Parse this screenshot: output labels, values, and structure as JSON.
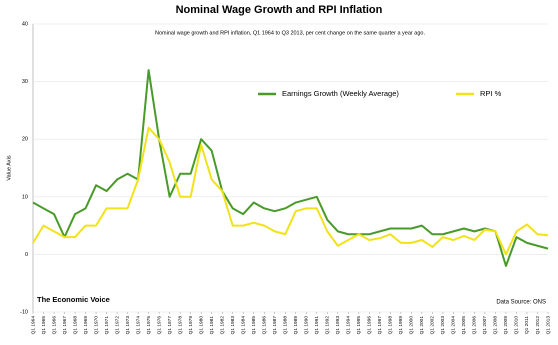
{
  "chart_data": {
    "type": "line",
    "title": "Nominal Wage Growth and RPI Inflation",
    "subtitle": "Nominal wage growth and RPI inflation, Q1 1964 to Q3 2013, per cent change on the same quarter a year ago.",
    "y_label": "Value Axis",
    "annotations": [
      "The Economic Voice",
      "Data Source: ONS"
    ],
    "categories": [
      "Q1 1964",
      "Q1 1965",
      "Q1 1966",
      "Q1 1967",
      "Q1 1968",
      "Q1 1969",
      "Q1 1970",
      "Q1 1971",
      "Q1 1972",
      "Q1 1973",
      "Q1 1974",
      "Q1 1975",
      "Q1 1976",
      "Q1 1977",
      "Q1 1978",
      "Q1 1979",
      "Q1 1980",
      "Q1 1981",
      "Q1 1982",
      "Q1 1983",
      "Q1 1984",
      "Q1 1985",
      "Q1 1986",
      "Q1 1987",
      "Q1 1988",
      "Q1 1989",
      "Q1 1990",
      "Q1 1991",
      "Q1 1992",
      "Q1 1993",
      "Q1 1994",
      "Q1 1995",
      "Q1 1996",
      "Q1 1997",
      "Q1 1998",
      "Q1 1999",
      "Q1 2000",
      "Q1 2001",
      "Q1 2002",
      "Q1 2003",
      "Q1 2004",
      "Q1 2005",
      "Q1 2006",
      "Q1 2007",
      "Q1 2008",
      "Q1 2009",
      "Q1 2010",
      "Q1 2011",
      "Q1 2012",
      "Q1 2013"
    ],
    "series": [
      {
        "name": "Earnings Growth (Weekly Average)",
        "color": "#4a9a2a",
        "values": [
          9,
          8,
          7,
          3,
          7,
          8,
          12,
          11,
          13,
          14,
          13,
          32,
          20,
          10,
          14,
          14,
          20,
          18,
          11,
          8,
          7,
          9,
          8,
          7.5,
          8,
          9,
          9.5,
          10,
          6,
          4,
          3.5,
          3.5,
          3.5,
          4,
          4.5,
          4.5,
          4.5,
          5,
          3.5,
          3.5,
          4,
          4.5,
          4,
          4.5,
          4,
          -2,
          3,
          2,
          1.5,
          1
        ]
      },
      {
        "name": "RPI %",
        "color": "#f2e21a",
        "values": [
          2,
          5,
          4,
          3,
          3,
          5,
          5,
          8,
          8,
          8,
          13,
          22,
          20,
          16,
          10,
          10,
          19,
          13,
          11,
          5,
          5,
          5.5,
          5,
          4,
          3.5,
          7.5,
          8,
          8,
          4,
          1.5,
          2.5,
          3.5,
          2.5,
          2.8,
          3.5,
          2,
          2,
          2.5,
          1.3,
          3,
          2.5,
          3.2,
          2.5,
          4.3,
          4,
          0,
          4,
          5.2,
          3.5,
          3.3
        ]
      }
    ],
    "ylim": [
      -10,
      40
    ],
    "yticks": [
      -10,
      0,
      10,
      20,
      30,
      40
    ],
    "grid": true
  }
}
